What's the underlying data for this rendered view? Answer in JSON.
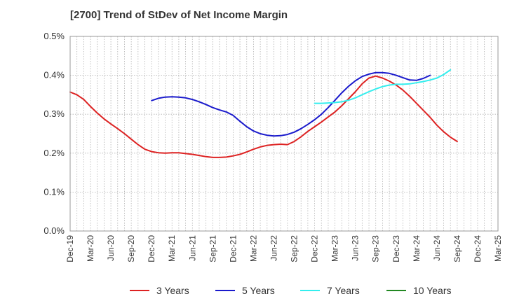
{
  "chart_data": {
    "type": "line",
    "title": "[2700]  Trend of StDev of Net Income Margin",
    "xlabel": "",
    "ylabel": "",
    "ylim": [
      0,
      0.5
    ],
    "yticks": [
      "0.0%",
      "0.1%",
      "0.2%",
      "0.3%",
      "0.4%",
      "0.5%"
    ],
    "ytick_values": [
      0,
      0.1,
      0.2,
      0.3,
      0.4,
      0.5
    ],
    "x_periods": [
      "Dec-19",
      "Mar-20",
      "Jun-20",
      "Sep-20",
      "Dec-20",
      "Mar-21",
      "Jun-21",
      "Sep-21",
      "Dec-21",
      "Mar-22",
      "Jun-22",
      "Sep-22",
      "Dec-22",
      "Mar-23",
      "Jun-23",
      "Sep-23",
      "Dec-23",
      "Mar-24",
      "Jun-24",
      "Sep-24",
      "Dec-24",
      "Mar-25"
    ],
    "grid": true,
    "legend_position": "bottom",
    "series": [
      {
        "name": "3 Years",
        "color": "#dd2222",
        "points": [
          [
            "Dec-19",
            0.357
          ],
          [
            "Jan-20",
            0.35
          ],
          [
            "Feb-20",
            0.338
          ],
          [
            "Mar-20",
            0.32
          ],
          [
            "Apr-20",
            0.303
          ],
          [
            "May-20",
            0.288
          ],
          [
            "Jun-20",
            0.275
          ],
          [
            "Jul-20",
            0.263
          ],
          [
            "Aug-20",
            0.25
          ],
          [
            "Sep-20",
            0.236
          ],
          [
            "Oct-20",
            0.222
          ],
          [
            "Nov-20",
            0.21
          ],
          [
            "Dec-20",
            0.204
          ],
          [
            "Jan-21",
            0.201
          ],
          [
            "Feb-21",
            0.2
          ],
          [
            "Mar-21",
            0.201
          ],
          [
            "Apr-21",
            0.201
          ],
          [
            "May-21",
            0.199
          ],
          [
            "Jun-21",
            0.197
          ],
          [
            "Jul-21",
            0.194
          ],
          [
            "Aug-21",
            0.191
          ],
          [
            "Sep-21",
            0.189
          ],
          [
            "Oct-21",
            0.189
          ],
          [
            "Nov-21",
            0.19
          ],
          [
            "Dec-21",
            0.193
          ],
          [
            "Jan-22",
            0.197
          ],
          [
            "Feb-22",
            0.203
          ],
          [
            "Mar-22",
            0.21
          ],
          [
            "Apr-22",
            0.216
          ],
          [
            "May-22",
            0.22
          ],
          [
            "Jun-22",
            0.222
          ],
          [
            "Jul-22",
            0.223
          ],
          [
            "Aug-22",
            0.222
          ],
          [
            "Sep-22",
            0.23
          ],
          [
            "Oct-22",
            0.242
          ],
          [
            "Nov-22",
            0.256
          ],
          [
            "Dec-22",
            0.268
          ],
          [
            "Jan-23",
            0.28
          ],
          [
            "Feb-23",
            0.293
          ],
          [
            "Mar-23",
            0.306
          ],
          [
            "Apr-23",
            0.322
          ],
          [
            "May-23",
            0.34
          ],
          [
            "Jun-23",
            0.358
          ],
          [
            "Jul-23",
            0.378
          ],
          [
            "Aug-23",
            0.393
          ],
          [
            "Sep-23",
            0.398
          ],
          [
            "Oct-23",
            0.393
          ],
          [
            "Nov-23",
            0.385
          ],
          [
            "Dec-23",
            0.375
          ],
          [
            "Jan-24",
            0.362
          ],
          [
            "Feb-24",
            0.346
          ],
          [
            "Mar-24",
            0.328
          ],
          [
            "Apr-24",
            0.31
          ],
          [
            "May-24",
            0.292
          ],
          [
            "Jun-24",
            0.272
          ],
          [
            "Jul-24",
            0.255
          ],
          [
            "Aug-24",
            0.241
          ],
          [
            "Sep-24",
            0.23
          ]
        ]
      },
      {
        "name": "5 Years",
        "color": "#1a1acc",
        "points": [
          [
            "Dec-20",
            0.335
          ],
          [
            "Jan-21",
            0.341
          ],
          [
            "Feb-21",
            0.344
          ],
          [
            "Mar-21",
            0.345
          ],
          [
            "Apr-21",
            0.344
          ],
          [
            "May-21",
            0.342
          ],
          [
            "Jun-21",
            0.338
          ],
          [
            "Jul-21",
            0.332
          ],
          [
            "Aug-21",
            0.325
          ],
          [
            "Sep-21",
            0.317
          ],
          [
            "Oct-21",
            0.311
          ],
          [
            "Nov-21",
            0.306
          ],
          [
            "Dec-21",
            0.297
          ],
          [
            "Jan-22",
            0.282
          ],
          [
            "Feb-22",
            0.268
          ],
          [
            "Mar-22",
            0.257
          ],
          [
            "Apr-22",
            0.25
          ],
          [
            "May-22",
            0.246
          ],
          [
            "Jun-22",
            0.244
          ],
          [
            "Jul-22",
            0.245
          ],
          [
            "Aug-22",
            0.248
          ],
          [
            "Sep-22",
            0.254
          ],
          [
            "Oct-22",
            0.263
          ],
          [
            "Nov-22",
            0.274
          ],
          [
            "Dec-22",
            0.286
          ],
          [
            "Jan-23",
            0.3
          ],
          [
            "Feb-23",
            0.317
          ],
          [
            "Mar-23",
            0.336
          ],
          [
            "Apr-23",
            0.355
          ],
          [
            "May-23",
            0.372
          ],
          [
            "Jun-23",
            0.386
          ],
          [
            "Jul-23",
            0.397
          ],
          [
            "Aug-23",
            0.403
          ],
          [
            "Sep-23",
            0.407
          ],
          [
            "Oct-23",
            0.407
          ],
          [
            "Nov-23",
            0.405
          ],
          [
            "Dec-23",
            0.4
          ],
          [
            "Jan-24",
            0.394
          ],
          [
            "Feb-24",
            0.388
          ],
          [
            "Mar-24",
            0.387
          ],
          [
            "Apr-24",
            0.392
          ],
          [
            "May-24",
            0.4
          ]
        ]
      },
      {
        "name": "7 Years",
        "color": "#33eeee",
        "points": [
          [
            "Dec-22",
            0.328
          ],
          [
            "Jan-23",
            0.328
          ],
          [
            "Feb-23",
            0.329
          ],
          [
            "Mar-23",
            0.33
          ],
          [
            "Apr-23",
            0.332
          ],
          [
            "May-23",
            0.336
          ],
          [
            "Jun-23",
            0.342
          ],
          [
            "Jul-23",
            0.35
          ],
          [
            "Aug-23",
            0.358
          ],
          [
            "Sep-23",
            0.365
          ],
          [
            "Oct-23",
            0.371
          ],
          [
            "Nov-23",
            0.375
          ],
          [
            "Dec-23",
            0.377
          ],
          [
            "Jan-24",
            0.377
          ],
          [
            "Feb-24",
            0.378
          ],
          [
            "Mar-24",
            0.381
          ],
          [
            "Apr-24",
            0.384
          ],
          [
            "May-24",
            0.388
          ],
          [
            "Jun-24",
            0.393
          ],
          [
            "Jul-24",
            0.402
          ],
          [
            "Aug-24",
            0.414
          ]
        ]
      },
      {
        "name": "10 Years",
        "color": "#228822",
        "points": []
      }
    ]
  }
}
